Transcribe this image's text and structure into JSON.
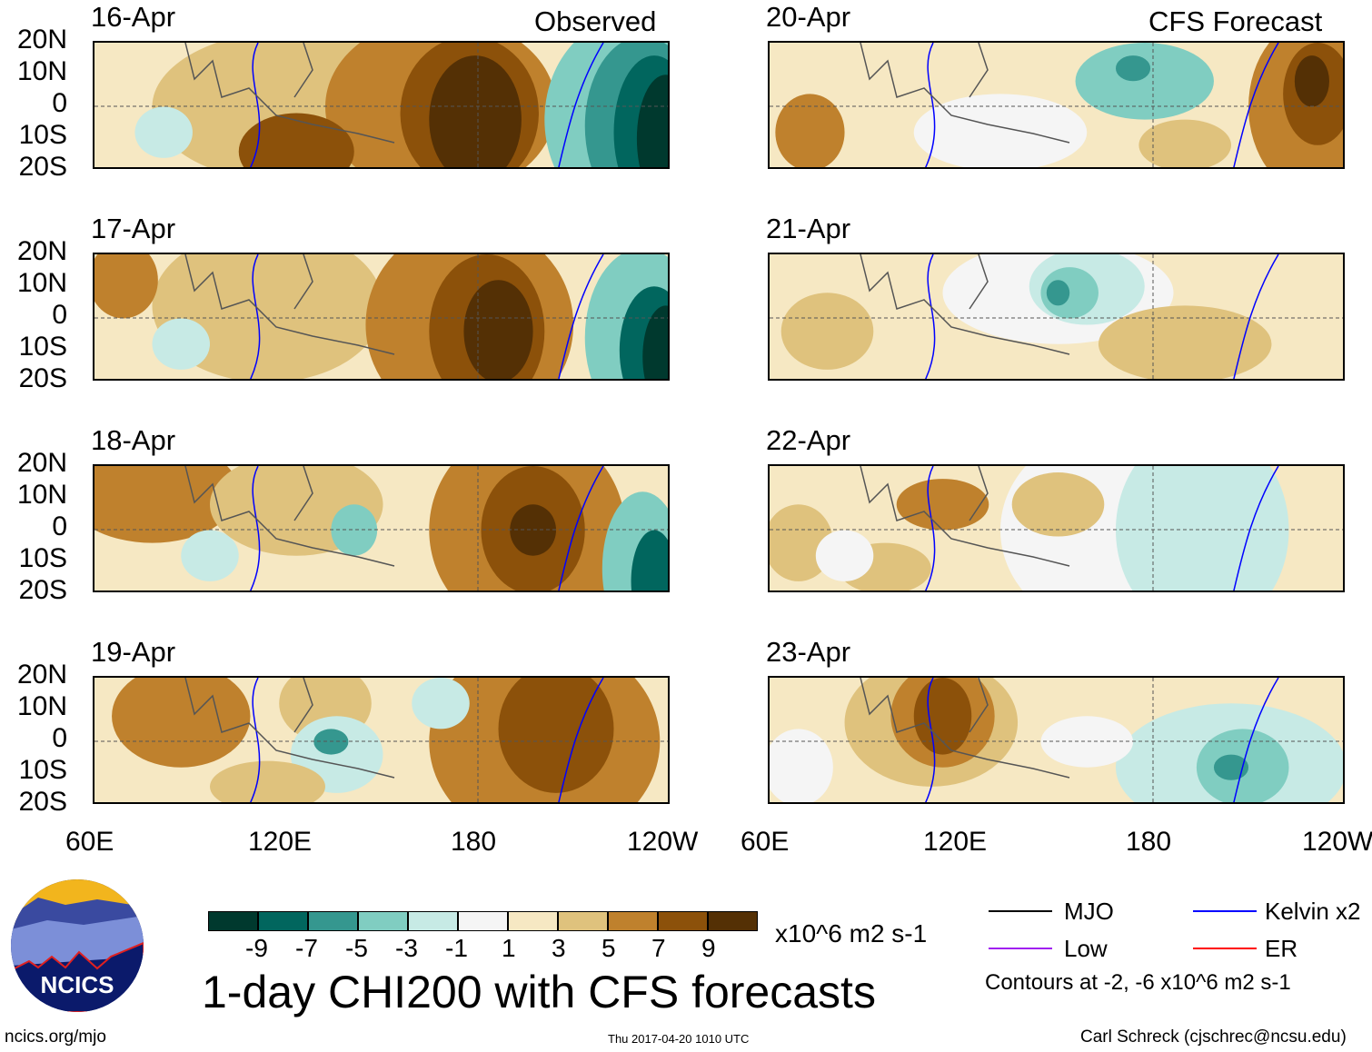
{
  "chart_data": {
    "type": "heatmap",
    "title": "1-day CHI200 with CFS forecasts",
    "units": "x10^6 m2 s-1",
    "observed_label": "Observed",
    "forecast_label": "CFS Forecast",
    "panels": {
      "observed": [
        "16-Apr",
        "17-Apr",
        "18-Apr",
        "19-Apr"
      ],
      "forecast": [
        "20-Apr",
        "21-Apr",
        "22-Apr",
        "23-Apr"
      ]
    },
    "lat_ticks": [
      "20N",
      "10N",
      "0",
      "10S",
      "20S"
    ],
    "lon_ticks": [
      "60E",
      "120E",
      "180",
      "120W"
    ],
    "colorbar": {
      "ticks": [
        "-9",
        "-7",
        "-5",
        "-3",
        "-1",
        "1",
        "3",
        "5",
        "7",
        "9"
      ],
      "colors": [
        "#00392e",
        "#01665e",
        "#35978f",
        "#80cdc1",
        "#c7eae5",
        "#f5f5f5",
        "#f6e8c3",
        "#dfc27d",
        "#bf812d",
        "#8c510a",
        "#543005"
      ]
    },
    "legend": [
      {
        "label": "MJO",
        "color": "#000000"
      },
      {
        "label": "Kelvin x2",
        "color": "#0000ff"
      },
      {
        "label": "Low",
        "color": "#a020f0"
      },
      {
        "label": "ER",
        "color": "#ff0000"
      }
    ],
    "contour_note": "Contours at -2, -6 x10^6 m2 s-1"
  },
  "footer": {
    "logo_text": "NCICS",
    "url": "ncics.org/mjo",
    "timestamp": "Thu 2017-04-20 1010 UTC",
    "credit": "Carl Schreck (cjschrec@ncsu.edu)"
  }
}
